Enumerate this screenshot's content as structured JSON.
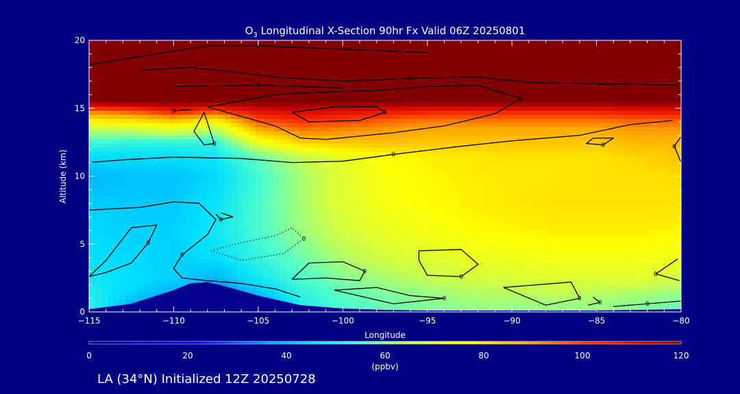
{
  "title_main": "O",
  "title_sub": "3",
  "title_rest": " Longitudinal X-Section 90hr  Fx Valid 06Z 20250801",
  "footer": "LA (34°N) Initialized 12Z 20250728",
  "colors": {
    "background": "#000080",
    "axis": "#ffffff",
    "contour": "#000000",
    "terrain": "#00008b",
    "top_band": "#800000"
  },
  "chart_data": {
    "type": "heatmap",
    "variable": "O3",
    "xlabel": "Longitude",
    "ylabel": "Altitude (km)",
    "xlim": [
      -115,
      -80
    ],
    "ylim": [
      0,
      20
    ],
    "x_ticks": [
      -115,
      -110,
      -105,
      -100,
      -95,
      -90,
      -85,
      -80
    ],
    "x_tick_labels": [
      "−115",
      "−110",
      "−105",
      "−100",
      "−95",
      "−90",
      "−85",
      "−80"
    ],
    "y_ticks": [
      0,
      5,
      10,
      15,
      20
    ],
    "y_tick_labels": [
      "0",
      "5",
      "10",
      "15",
      "20"
    ],
    "colorbar": {
      "min": 0,
      "max": 120,
      "ticks": [
        0,
        20,
        40,
        60,
        80,
        100,
        120
      ],
      "tick_labels": [
        "0",
        "20",
        "40",
        "60",
        "80",
        "100",
        "120"
      ],
      "units": "(ppbv)",
      "stops": [
        {
          "v": 0,
          "c": "#000080"
        },
        {
          "v": 22,
          "c": "#0000ff"
        },
        {
          "v": 36,
          "c": "#0096ff"
        },
        {
          "v": 46,
          "c": "#00e0ff"
        },
        {
          "v": 56,
          "c": "#55ffc8"
        },
        {
          "v": 66,
          "c": "#c8ff50"
        },
        {
          "v": 76,
          "c": "#ffff00"
        },
        {
          "v": 88,
          "c": "#ffaa00"
        },
        {
          "v": 100,
          "c": "#ff3200"
        },
        {
          "v": 112,
          "c": "#c80000"
        },
        {
          "v": 120,
          "c": "#800000"
        }
      ]
    },
    "field": {
      "longitudes": [
        -115,
        -112.5,
        -110,
        -107.5,
        -105,
        -102.5,
        -100,
        -97.5,
        -95,
        -92.5,
        -90,
        -87.5,
        -85,
        -82.5,
        -80
      ],
      "altitudes": [
        0.5,
        1.5,
        2.5,
        4,
        6,
        8,
        10,
        11.5,
        12.5,
        13.5,
        14.2,
        14.8,
        15.5,
        17,
        19
      ],
      "values_ppbv": [
        [
          52,
          40,
          30,
          22,
          35,
          50,
          55,
          58,
          60,
          62,
          62,
          62,
          62,
          60,
          58
        ],
        [
          50,
          45,
          40,
          34,
          42,
          52,
          57,
          60,
          62,
          64,
          65,
          66,
          65,
          64,
          62
        ],
        [
          48,
          46,
          44,
          40,
          48,
          55,
          60,
          63,
          66,
          68,
          69,
          70,
          70,
          70,
          68
        ],
        [
          46,
          45,
          44,
          46,
          52,
          58,
          64,
          68,
          70,
          72,
          73,
          74,
          74,
          74,
          73
        ],
        [
          45,
          44,
          44,
          48,
          55,
          62,
          68,
          72,
          74,
          76,
          77,
          78,
          78,
          78,
          77
        ],
        [
          44,
          43,
          43,
          47,
          55,
          63,
          70,
          74,
          76,
          78,
          79,
          80,
          80,
          80,
          80
        ],
        [
          40,
          42,
          42,
          45,
          54,
          63,
          70,
          75,
          77,
          78,
          79,
          79,
          80,
          80,
          81
        ],
        [
          46,
          46,
          46,
          48,
          58,
          66,
          72,
          76,
          78,
          79,
          80,
          80,
          80,
          82,
          84
        ],
        [
          54,
          52,
          52,
          52,
          72,
          82,
          84,
          85,
          84,
          84,
          84,
          84,
          84,
          86,
          86
        ],
        [
          66,
          68,
          72,
          66,
          88,
          94,
          92,
          90,
          88,
          88,
          88,
          88,
          88,
          90,
          90
        ],
        [
          80,
          82,
          86,
          80,
          98,
          102,
          100,
          96,
          94,
          94,
          94,
          94,
          94,
          96,
          96
        ],
        [
          92,
          96,
          104,
          98,
          108,
          110,
          108,
          106,
          104,
          104,
          104,
          104,
          104,
          106,
          106
        ],
        [
          120,
          120,
          120,
          120,
          120,
          120,
          120,
          120,
          120,
          120,
          120,
          120,
          120,
          120,
          120
        ],
        [
          120,
          120,
          120,
          120,
          120,
          120,
          120,
          120,
          120,
          120,
          120,
          120,
          120,
          120,
          120
        ],
        [
          120,
          120,
          120,
          120,
          120,
          120,
          120,
          120,
          120,
          120,
          120,
          120,
          120,
          120,
          120
        ]
      ]
    },
    "terrain_profile": {
      "longitudes": [
        -115,
        -112.5,
        -110,
        -109,
        -108,
        -107,
        -105,
        -102.5,
        -100,
        -97.5,
        -95,
        -92.5,
        -90,
        -87.5,
        -85,
        -82.5,
        -80
      ],
      "altitude_km": [
        0.2,
        0.6,
        1.6,
        2.1,
        2.2,
        1.9,
        1.2,
        0.5,
        0.25,
        0.15,
        0.1,
        0.1,
        0.1,
        0.1,
        0.1,
        0.15,
        0.2
      ]
    },
    "contours": [
      {
        "label": "0",
        "style": "solid",
        "points": [
          [
            -115,
            18.2
          ],
          [
            -112,
            18.8
          ],
          [
            -108,
            19.6
          ],
          [
            -105,
            19.6
          ],
          [
            -101,
            19.4
          ],
          [
            -95,
            19.1
          ]
        ]
      },
      {
        "label": "0",
        "style": "solid",
        "points": [
          [
            -112,
            17.8
          ],
          [
            -109,
            18.0
          ],
          [
            -106,
            17.6
          ],
          [
            -104,
            17.3
          ],
          [
            -100,
            17.0
          ],
          [
            -96,
            17.2
          ],
          [
            -92,
            17.3
          ],
          [
            -89,
            16.9
          ],
          [
            -85,
            16.8
          ],
          [
            -80.2,
            16.7
          ]
        ]
      },
      {
        "label": "0",
        "style": "solid",
        "points": [
          [
            -110,
            16.6
          ],
          [
            -105,
            16.7
          ],
          [
            -100,
            16.5
          ]
        ]
      },
      {
        "label": "0",
        "style": "solid",
        "points": [
          [
            -103,
            14.7
          ],
          [
            -100.5,
            15.1
          ],
          [
            -98,
            15.1
          ],
          [
            -97.5,
            14.7
          ],
          [
            -99,
            14.1
          ],
          [
            -102,
            14.0
          ],
          [
            -103,
            14.7
          ]
        ]
      },
      {
        "label": "0",
        "style": "solid",
        "points": [
          [
            -108,
            15.1
          ],
          [
            -104,
            13.7
          ],
          [
            -102.5,
            12.8
          ],
          [
            -101,
            12.7
          ],
          [
            -97,
            13.2
          ],
          [
            -94,
            13.7
          ],
          [
            -91,
            14.6
          ],
          [
            -89.5,
            15.7
          ],
          [
            -92,
            16.7
          ],
          [
            -95,
            16.6
          ],
          [
            -98,
            16.3
          ],
          [
            -101,
            16.2
          ],
          [
            -104,
            16.0
          ],
          [
            -108,
            15.1
          ]
        ]
      },
      {
        "label": "0",
        "style": "solid",
        "points": [
          [
            -115,
            11.0
          ],
          [
            -113,
            11.2
          ],
          [
            -110,
            11.4
          ],
          [
            -106,
            11.3
          ],
          [
            -103,
            11.0
          ],
          [
            -100,
            11.1
          ],
          [
            -97,
            11.6
          ],
          [
            -93,
            12.2
          ],
          [
            -90,
            12.6
          ],
          [
            -86,
            13.0
          ],
          [
            -83,
            13.8
          ],
          [
            -80.5,
            14.1
          ]
        ]
      },
      {
        "label": "0",
        "style": "solid",
        "points": [
          [
            -108.8,
            13.3
          ],
          [
            -108.2,
            14.7
          ],
          [
            -107.6,
            12.4
          ],
          [
            -108.2,
            12.3
          ],
          [
            -108.8,
            13.3
          ]
        ]
      },
      {
        "label": "0",
        "style": "solid",
        "points": [
          [
            -109,
            14.9
          ],
          [
            -110,
            14.8
          ]
        ]
      },
      {
        "label": "0",
        "style": "solid",
        "points": [
          [
            -85.2,
            12.8
          ],
          [
            -84,
            12.8
          ],
          [
            -84.6,
            12.3
          ],
          [
            -85.6,
            12.4
          ],
          [
            -85.2,
            12.8
          ]
        ]
      },
      {
        "label": "0",
        "style": "solid",
        "points": [
          [
            -80,
            12.9
          ],
          [
            -80.4,
            12.2
          ],
          [
            -80,
            11.0
          ]
        ]
      },
      {
        "label": "0",
        "style": "solid",
        "points": [
          [
            -115,
            7.5
          ],
          [
            -112,
            7.7
          ],
          [
            -110,
            8.1
          ],
          [
            -108.5,
            8.0
          ],
          [
            -107.5,
            6.8
          ],
          [
            -108,
            5.7
          ],
          [
            -109.5,
            4.2
          ],
          [
            -110,
            3.2
          ],
          [
            -109.5,
            2.5
          ],
          [
            -108,
            2.3
          ],
          [
            -106,
            2.1
          ],
          [
            -104,
            1.7
          ],
          [
            -102.5,
            1.1
          ]
        ]
      },
      {
        "label": "0",
        "style": "solid",
        "points": [
          [
            -107.2,
            7.3
          ],
          [
            -106.5,
            7.0
          ],
          [
            -107.2,
            6.8
          ],
          [
            -107.5,
            7.2
          ]
        ]
      },
      {
        "label": "0",
        "style": "solid",
        "points": [
          [
            -115,
            2.6
          ],
          [
            -114,
            3.8
          ],
          [
            -112.5,
            6.2
          ],
          [
            -111,
            6.4
          ],
          [
            -111.5,
            5.1
          ],
          [
            -112.5,
            3.6
          ],
          [
            -114,
            2.9
          ],
          [
            -115,
            2.6
          ]
        ]
      },
      {
        "label": "0",
        "style": "dotted",
        "points": [
          [
            -107.8,
            4.5
          ],
          [
            -106,
            5.1
          ],
          [
            -104,
            5.6
          ],
          [
            -103,
            6.2
          ],
          [
            -102.3,
            5.4
          ],
          [
            -103.5,
            4.3
          ],
          [
            -106,
            3.8
          ],
          [
            -107.8,
            4.5
          ]
        ]
      },
      {
        "label": "0",
        "style": "solid",
        "points": [
          [
            -103,
            2.4
          ],
          [
            -102,
            3.6
          ],
          [
            -100,
            3.7
          ],
          [
            -98.7,
            3.0
          ],
          [
            -99,
            2.3
          ],
          [
            -101,
            2.5
          ],
          [
            -103,
            2.4
          ]
        ]
      },
      {
        "label": "0",
        "style": "solid",
        "points": [
          [
            -95.5,
            4.5
          ],
          [
            -93,
            4.6
          ],
          [
            -92,
            3.5
          ],
          [
            -93,
            2.6
          ],
          [
            -95,
            2.7
          ],
          [
            -95.5,
            3.8
          ],
          [
            -95.5,
            4.5
          ]
        ]
      },
      {
        "label": "0",
        "style": "solid",
        "points": [
          [
            -100.5,
            1.6
          ],
          [
            -98,
            1.8
          ],
          [
            -96,
            1.2
          ],
          [
            -94,
            1.0
          ],
          [
            -97,
            0.6
          ],
          [
            -100.5,
            1.6
          ]
        ]
      },
      {
        "label": "0",
        "style": "solid",
        "points": [
          [
            -90.5,
            1.8
          ],
          [
            -86.5,
            2.2
          ],
          [
            -86,
            1.0
          ],
          [
            -88,
            0.5
          ],
          [
            -90.5,
            1.8
          ]
        ]
      },
      {
        "label": "0",
        "style": "solid",
        "points": [
          [
            -85.2,
            1.1
          ],
          [
            -84.8,
            0.7
          ],
          [
            -85.5,
            0.5
          ]
        ]
      },
      {
        "label": "0",
        "style": "solid",
        "points": [
          [
            -80.2,
            3.9
          ],
          [
            -81.5,
            2.8
          ],
          [
            -80.1,
            2.3
          ]
        ]
      },
      {
        "label": "0",
        "style": "solid",
        "points": [
          [
            -84,
            0.4
          ],
          [
            -82,
            0.6
          ],
          [
            -80,
            0.8
          ]
        ]
      }
    ]
  }
}
